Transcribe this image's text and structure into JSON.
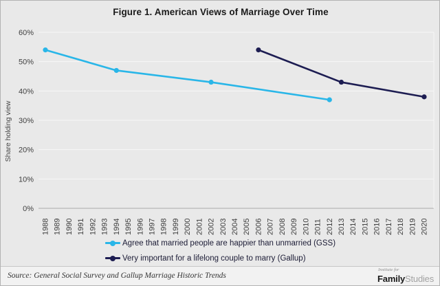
{
  "title": "Figure 1. American Views of Marriage Over Time",
  "footer": {
    "source": "Source: General Social Survey and Gallup Marriage Historic Trends",
    "logo_top": "Institute for",
    "logo_bold": "Family",
    "logo_light": "Studies"
  },
  "colors": {
    "background": "#e9e9e9",
    "footer_background": "#f2f2f2",
    "gridline": "#f7f7f7",
    "axis_line": "#a9a9a9",
    "tick_text": "#404040",
    "gss_line": "#29b6e8",
    "gallup_line": "#1d1d52"
  },
  "chart_data": {
    "type": "line",
    "title": "Figure 1. American Views of Marriage Over Time",
    "xlabel": "",
    "ylabel": "Share holding view",
    "xlim": [
      1988,
      2020
    ],
    "ylim": [
      0,
      60
    ],
    "grid": "horizontal",
    "legend_position": "bottom-left",
    "x_ticks": [
      1988,
      1989,
      1990,
      1991,
      1992,
      1993,
      1994,
      1995,
      1996,
      1997,
      1998,
      1999,
      2000,
      2001,
      2002,
      2003,
      2004,
      2005,
      2006,
      2007,
      2008,
      2009,
      2010,
      2011,
      2012,
      2013,
      2014,
      2015,
      2016,
      2017,
      2018,
      2019,
      2020
    ],
    "y_ticks": [
      "0%",
      "10%",
      "20%",
      "30%",
      "40%",
      "50%",
      "60%"
    ],
    "series": [
      {
        "name": "Agree that married people are happier than unmarried (GSS)",
        "color": "#29b6e8",
        "points": [
          [
            1988,
            54
          ],
          [
            1994,
            47
          ],
          [
            2002,
            43
          ],
          [
            2012,
            37
          ]
        ]
      },
      {
        "name": "Very important for a lifelong couple to marry (Gallup)",
        "color": "#1d1d52",
        "points": [
          [
            2006,
            54
          ],
          [
            2013,
            43
          ],
          [
            2020,
            38
          ]
        ]
      }
    ]
  }
}
